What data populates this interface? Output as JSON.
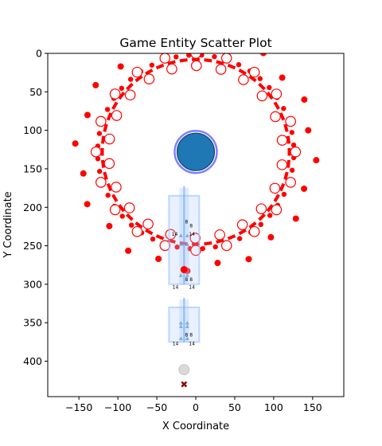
{
  "chart_data": {
    "type": "scatter",
    "title": "Game Entity Scatter Plot",
    "xlabel": "X Coordinate",
    "ylabel": "Y Coordinate",
    "xlim": [
      -190,
      190
    ],
    "ylim": [
      446,
      0
    ],
    "y_inverted": true,
    "grid": false,
    "xticks": [
      -150,
      -100,
      -50,
      0,
      50,
      100,
      150
    ],
    "yticks": [
      0,
      50,
      100,
      150,
      200,
      250,
      300,
      350,
      400
    ],
    "colors": {
      "red": "#ff0000",
      "blue_fill": "#1f77b4",
      "blue_ring": "#8080ff",
      "light_blue": "#a6c8ff",
      "tower_blue": "#6a9fe0",
      "gray": "#d9d9d9",
      "dark_red": "#8b0000"
    },
    "ring_center": [
      0,
      128
    ],
    "player": {
      "x": 0,
      "y": 128
    },
    "red_dots_outer": {
      "center": [
        0,
        128
      ],
      "radii": [
        155
      ],
      "count": 24
    },
    "red_arcs": {
      "center": [
        0,
        128
      ],
      "radius": 120,
      "count": 48
    },
    "white_circles": {
      "center": [
        0,
        128
      ],
      "radii": [
        112,
        128
      ],
      "count": 20
    },
    "towers": [
      {
        "x": -15,
        "y_top": 185,
        "y_bottom": 300,
        "labels": [
          "8",
          "8",
          "14",
          "14"
        ]
      },
      {
        "x": -15,
        "y_top": 330,
        "y_bottom": 375,
        "labels": [
          "8",
          "14",
          "14"
        ]
      }
    ],
    "tower_label_points": [
      {
        "x": -12,
        "y": 221,
        "text": "8"
      },
      {
        "x": -6,
        "y": 226,
        "text": "8"
      },
      {
        "x": -27,
        "y": 237,
        "text": "14"
      },
      {
        "x": -5,
        "y": 237,
        "text": "14"
      },
      {
        "x": -12,
        "y": 296,
        "text": "8"
      },
      {
        "x": -6,
        "y": 296,
        "text": "8"
      },
      {
        "x": -26,
        "y": 306,
        "text": "14"
      },
      {
        "x": -5,
        "y": 306,
        "text": "14"
      },
      {
        "x": -12,
        "y": 368,
        "text": "8"
      },
      {
        "x": -6,
        "y": 368,
        "text": "8"
      },
      {
        "x": -26,
        "y": 379,
        "text": "14"
      },
      {
        "x": -5,
        "y": 379,
        "text": "14"
      }
    ],
    "inner_red_dot": {
      "x": -15,
      "y": 281
    },
    "gray_circle": {
      "x": -15,
      "y": 411
    },
    "x_marker": {
      "x": -15,
      "y": 430
    }
  }
}
